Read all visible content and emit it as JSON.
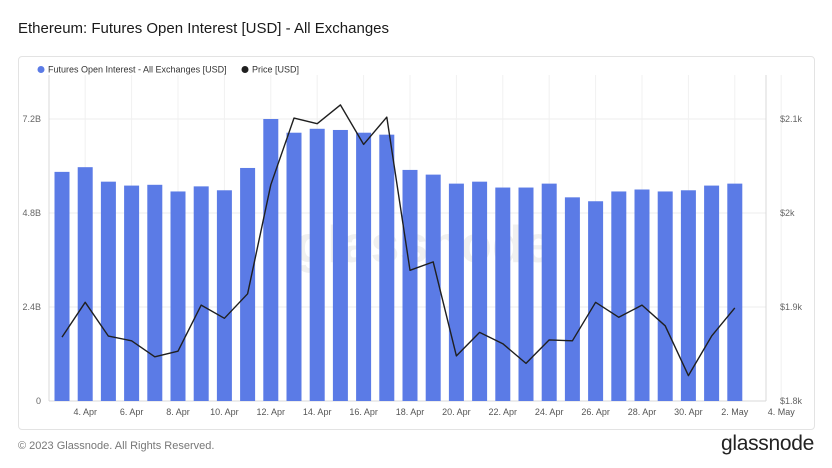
{
  "header": {
    "title": "Ethereum: Futures Open Interest [USD] - All Exchanges"
  },
  "footer": {
    "copyright": "© 2023 Glassnode. All Rights Reserved.",
    "brand": "glassnode"
  },
  "watermark": "glassnode",
  "chart_data": {
    "type": "bar",
    "legend_position": "top-left",
    "grid": true,
    "series": [
      {
        "name": "Futures Open Interest - All Exchanges [USD]",
        "kind": "bar",
        "axis": "left",
        "color": "#5b7be6",
        "values": [
          5.85,
          5.97,
          5.6,
          5.5,
          5.52,
          5.35,
          5.48,
          5.38,
          5.95,
          7.2,
          6.85,
          6.95,
          6.92,
          6.85,
          6.8,
          5.9,
          5.78,
          5.55,
          5.6,
          5.45,
          5.45,
          5.55,
          5.2,
          5.1,
          5.35,
          5.4,
          5.35,
          5.38,
          5.5,
          5.55
        ]
      },
      {
        "name": "Price [USD]",
        "kind": "line",
        "axis": "right",
        "color": "#1f1f1f",
        "values": [
          1868,
          1905,
          1869,
          1864,
          1847,
          1853,
          1902,
          1888,
          1914,
          2030,
          2101,
          2095,
          2115,
          2073,
          2102,
          1939,
          1948,
          1848,
          1873,
          1861,
          1840,
          1865,
          1864,
          1905,
          1889,
          1902,
          1880,
          1827,
          1869,
          1899
        ]
      }
    ],
    "dates": [
      "3 Apr",
      "4 Apr",
      "5 Apr",
      "6 Apr",
      "7 Apr",
      "8 Apr",
      "9 Apr",
      "10 Apr",
      "11 Apr",
      "12 Apr",
      "13 Apr",
      "14 Apr",
      "15 Apr",
      "16 Apr",
      "17 Apr",
      "18 Apr",
      "19 Apr",
      "20 Apr",
      "21 Apr",
      "22 Apr",
      "23 Apr",
      "24 Apr",
      "25 Apr",
      "26 Apr",
      "27 Apr",
      "28 Apr",
      "29 Apr",
      "30 Apr",
      "1 May",
      "2 May"
    ],
    "x_tick_labels": [
      "4. Apr",
      "6. Apr",
      "8. Apr",
      "10. Apr",
      "12. Apr",
      "14. Apr",
      "16. Apr",
      "18. Apr",
      "20. Apr",
      "22. Apr",
      "24. Apr",
      "26. Apr",
      "28. Apr",
      "30. Apr",
      "2. May",
      "4. May"
    ],
    "y_left": {
      "ticks": [
        0,
        2.4,
        4.8,
        7.2
      ],
      "tick_labels": [
        "0",
        "2.4B",
        "4.8B",
        "7.2B"
      ],
      "range": [
        0,
        7.2
      ]
    },
    "y_right": {
      "ticks": [
        1800,
        1900,
        2000,
        2100
      ],
      "tick_labels": [
        "$1.8k",
        "$1.9k",
        "$2k",
        "$2.1k"
      ],
      "range": [
        1800,
        2100
      ]
    }
  }
}
